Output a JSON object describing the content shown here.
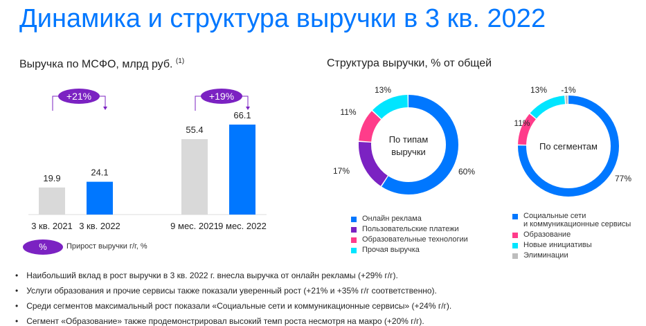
{
  "title": "Динамика и структура выручки в 3 кв. 2022",
  "colors": {
    "blue": "#0077ff",
    "gray": "#d9d9d9",
    "purple": "#7b22c2",
    "pink": "#ff3c8a",
    "cyan": "#00e5ff",
    "elim": "#bdbdbd"
  },
  "chart_data": [
    {
      "type": "bar",
      "title": "Выручка по МСФО, млрд руб.",
      "footnote": "(1)",
      "categories": [
        "3 кв. 2021",
        "3 кв. 2022",
        "9 мес. 2021",
        "9 мес. 2022"
      ],
      "values": [
        19.9,
        24.1,
        55.4,
        66.1
      ],
      "value_labels": [
        "19.9",
        "24.1",
        "55.4",
        "66.1"
      ],
      "growth": [
        {
          "from": 0,
          "to": 1,
          "label": "+21%"
        },
        {
          "from": 2,
          "to": 3,
          "label": "+19%"
        }
      ],
      "legend": {
        "badge": "%",
        "label": "Прирост выручки г/г, %"
      }
    },
    {
      "type": "pie",
      "title": "Структура выручки, % от общей",
      "center_label": [
        "По типам",
        "выручки"
      ],
      "slices": [
        {
          "name": "Онлайн реклама",
          "value": 60,
          "label": "60%",
          "color": "#0077ff"
        },
        {
          "name": "Пользовательские платежи",
          "value": 17,
          "label": "17%",
          "color": "#7b22c2"
        },
        {
          "name": "Образовательные технологии",
          "value": 11,
          "label": "11%",
          "color": "#ff3c8a"
        },
        {
          "name": "Прочая выручка",
          "value": 13,
          "label": "13%",
          "color": "#00e5ff"
        }
      ]
    },
    {
      "type": "pie",
      "center_label": [
        "По сегментам"
      ],
      "slices": [
        {
          "name": "Социальные сети и коммуникационные сервисы",
          "value": 77,
          "label": "77%",
          "color": "#0077ff"
        },
        {
          "name": "Образование",
          "value": 11,
          "label": "11%",
          "color": "#ff3c8a"
        },
        {
          "name": "Новые инициативы",
          "value": 13,
          "label": "13%",
          "color": "#00e5ff"
        },
        {
          "name": "Элиминации",
          "value": -1,
          "label": "-1%",
          "color": "#bdbdbd"
        }
      ],
      "legend_lines": [
        [
          "Социальные сети",
          "и коммуникационные сервисы"
        ],
        [
          "Образование"
        ],
        [
          "Новые инициативы"
        ],
        [
          "Элиминации"
        ]
      ]
    }
  ],
  "bullets": [
    "Наибольший вклад в рост выручки в 3 кв. 2022 г. внесла выручка от онлайн рекламы (+29% г/г).",
    "Услуги образования и прочие сервисы также показали уверенный рост (+21% и +35% г/г соответственно).",
    "Среди сегментов максимальный рост показали «Социальные сети и коммуникационные сервисы» (+24% г/г).",
    "Сегмент «Образование» также продемонстрировал высокий темп роста несмотря на макро (+20% г/г)."
  ]
}
